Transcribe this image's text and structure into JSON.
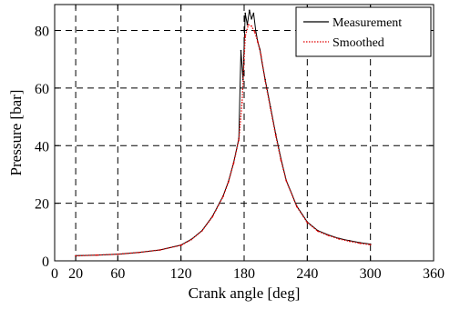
{
  "chart_data": {
    "type": "line",
    "title": "",
    "xlabel": "Crank angle [deg]",
    "ylabel": "Pressure [bar]",
    "xlim": [
      0,
      360
    ],
    "ylim": [
      0,
      89
    ],
    "xticks": [
      0,
      20,
      60,
      120,
      180,
      240,
      300,
      360
    ],
    "xtick_labels": [
      "0",
      "20",
      "60",
      "120",
      "180",
      "240",
      "300",
      "360"
    ],
    "yticks": [
      0,
      20,
      40,
      60,
      80
    ],
    "ytick_labels": [
      "0",
      "20",
      "40",
      "60",
      "80"
    ],
    "grid": true,
    "grid_style": "dashed",
    "legend_position": "top-right",
    "series": [
      {
        "name": "Measurement",
        "color": "#000000",
        "line_style": "solid",
        "x": [
          20,
          40,
          60,
          80,
          100,
          120,
          130,
          140,
          150,
          160,
          165,
          170,
          175,
          177,
          179,
          181,
          183,
          185,
          187,
          189,
          191,
          193,
          195,
          197,
          200,
          205,
          210,
          215,
          220,
          230,
          240,
          250,
          260,
          270,
          280,
          290,
          300
        ],
        "y": [
          1.8,
          2.0,
          2.3,
          2.9,
          3.8,
          5.5,
          7.5,
          10.5,
          15.5,
          22.5,
          27.5,
          34.0,
          42.5,
          73.0,
          63.0,
          86.0,
          82.0,
          87.0,
          84.0,
          86.0,
          80.0,
          76.0,
          73.5,
          69.0,
          63.0,
          53.5,
          44.0,
          35.5,
          28.0,
          19.0,
          13.5,
          10.5,
          9.0,
          7.8,
          7.0,
          6.3,
          5.8
        ]
      },
      {
        "name": "Smoothed",
        "color": "#e00000",
        "line_style": "dotted",
        "x": [
          20,
          40,
          60,
          80,
          100,
          120,
          130,
          140,
          150,
          160,
          165,
          170,
          175,
          178,
          181,
          184,
          187,
          190,
          193,
          196,
          200,
          205,
          210,
          215,
          220,
          230,
          240,
          250,
          260,
          270,
          280,
          290,
          300
        ],
        "y": [
          1.7,
          2.0,
          2.3,
          2.9,
          3.8,
          5.4,
          7.4,
          10.4,
          15.3,
          22.3,
          27.3,
          33.8,
          42.0,
          55.0,
          78.0,
          82.0,
          81.5,
          79.5,
          76.0,
          71.5,
          62.5,
          53.0,
          43.5,
          35.0,
          27.8,
          18.8,
          13.3,
          10.3,
          8.8,
          7.6,
          6.8,
          6.1,
          5.6
        ]
      }
    ]
  }
}
